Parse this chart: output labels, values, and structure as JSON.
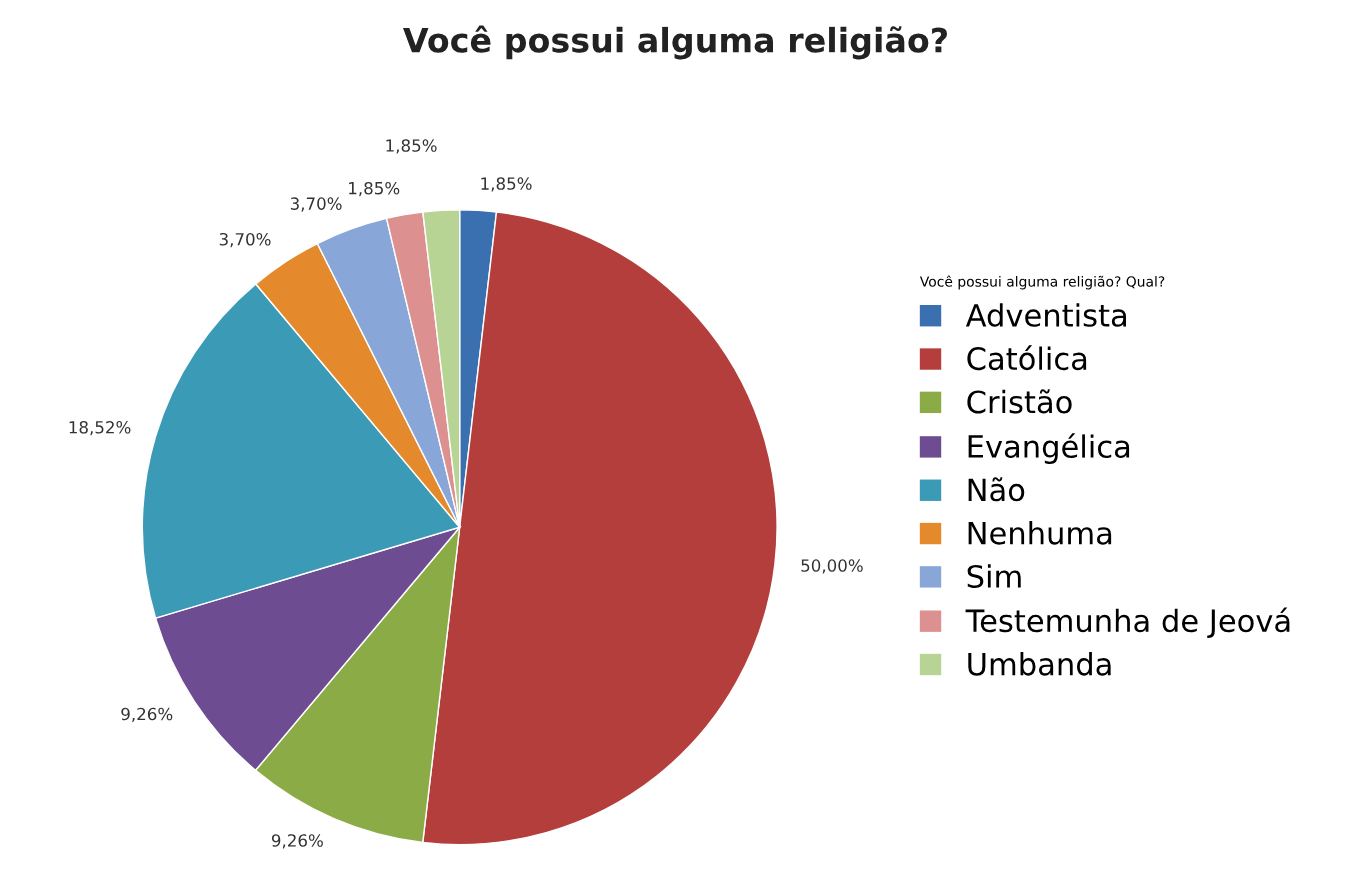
{
  "chart_data": {
    "type": "pie",
    "title": "Você possui alguma religião?",
    "legend_title": "Você possui alguma religião? Qual?",
    "categories": [
      "Adventista",
      "Católica",
      "Cristão",
      "Evangélica",
      "Não",
      "Nenhuma",
      "Sim",
      "Testemunha de Jeová",
      "Umbanda"
    ],
    "values": [
      1.85,
      50.0,
      9.26,
      9.26,
      18.52,
      3.7,
      3.7,
      1.85,
      1.85
    ],
    "value_labels": [
      "1,85%",
      "50,00%",
      "9,26%",
      "9,26%",
      "18,52%",
      "3,70%",
      "3,70%",
      "1,85%",
      "1,85%"
    ],
    "colors": [
      "#3a6fb0",
      "#b43e3c",
      "#8bab46",
      "#6e4c92",
      "#3b9ab5",
      "#e58a2c",
      "#88a7d8",
      "#dc9190",
      "#b7d495"
    ],
    "legend": "right"
  }
}
